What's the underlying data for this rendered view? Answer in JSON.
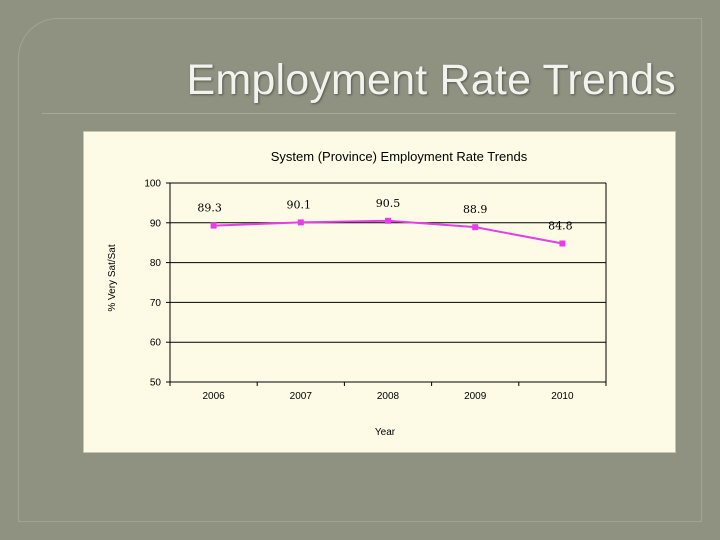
{
  "slide": {
    "title": "Employment Rate Trends"
  },
  "chart_data": {
    "type": "line",
    "title": "System (Province) Employment Rate Trends",
    "xlabel": "Year",
    "ylabel": "% Very Sat/Sat",
    "categories": [
      "2006",
      "2007",
      "2008",
      "2009",
      "2010"
    ],
    "series": [
      {
        "values": [
          89.3,
          90.1,
          90.5,
          88.9,
          84.8
        ],
        "data_labels": [
          "89.3",
          "90.1",
          "90.5",
          "88.9",
          "84.8"
        ]
      }
    ],
    "ylim": [
      50,
      100
    ],
    "yticks": [
      "50",
      "60",
      "70",
      "80",
      "90",
      "100"
    ],
    "grid": "horizontal",
    "colors": {
      "line": "#e63ee6",
      "marker": "#e63ee6",
      "grid": "#000000"
    }
  }
}
